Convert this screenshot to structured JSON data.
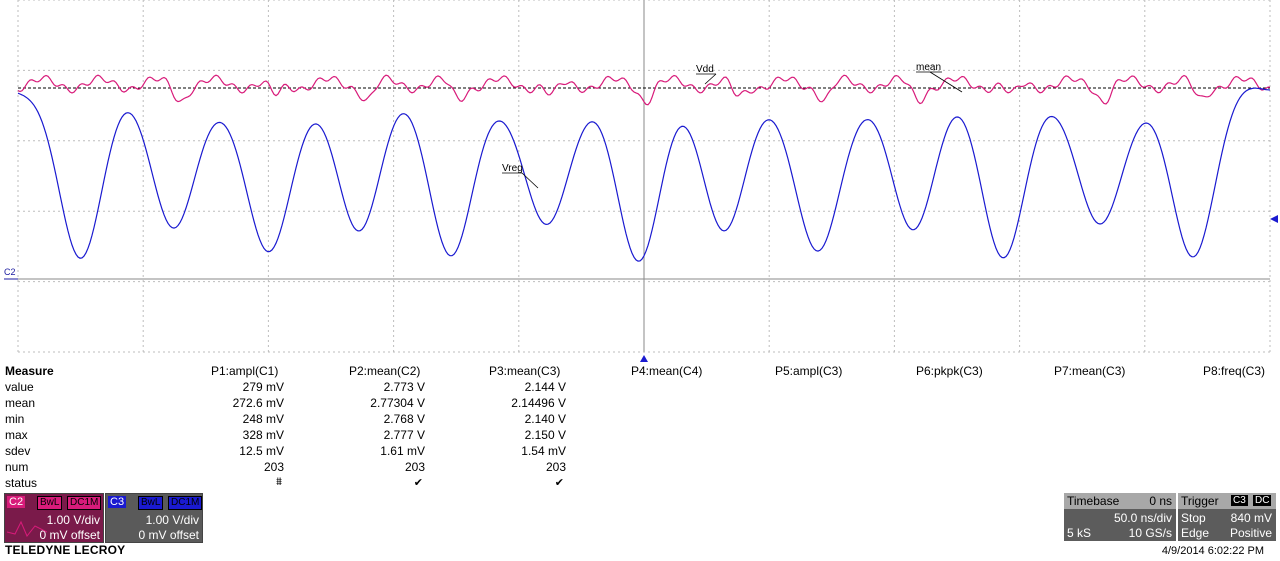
{
  "scope": {
    "annotations": {
      "vdd": "Vdd",
      "vreg": "Vreg",
      "mean": "mean"
    },
    "channel_marker": "C2"
  },
  "measure": {
    "title": "Measure",
    "row_labels": [
      "value",
      "mean",
      "min",
      "max",
      "sdev",
      "num",
      "status"
    ],
    "params": [
      {
        "header": "P1:ampl(C1)",
        "value": "279 mV",
        "mean": "272.6 mV",
        "min": "248 mV",
        "max": "328 mV",
        "sdev": "12.5 mV",
        "num": "203",
        "status": "⩩"
      },
      {
        "header": "P2:mean(C2)",
        "value": "2.773 V",
        "mean": "2.77304 V",
        "min": "2.768 V",
        "max": "2.777 V",
        "sdev": "1.61 mV",
        "num": "203",
        "status": "✔"
      },
      {
        "header": "P3:mean(C3)",
        "value": "2.144 V",
        "mean": "2.14496 V",
        "min": "2.140 V",
        "max": "2.150 V",
        "sdev": "1.54 mV",
        "num": "203",
        "status": "✔"
      },
      {
        "header": "P4:mean(C4)"
      },
      {
        "header": "P5:ampl(C3)"
      },
      {
        "header": "P6:pkpk(C3)"
      },
      {
        "header": "P7:mean(C3)"
      },
      {
        "header": "P8:freq(C3)"
      }
    ]
  },
  "channels": [
    {
      "id": "C2",
      "bw": "BwL",
      "coupling": "DC1M",
      "vdiv": "1.00 V/div",
      "offset": "0 mV offset",
      "color": "#d81b7a"
    },
    {
      "id": "C3",
      "bw": "BwL",
      "coupling": "DC1M",
      "vdiv": "1.00 V/div",
      "offset": "0 mV offset",
      "color": "#1a1ad0"
    }
  ],
  "timebase": {
    "label": "Timebase",
    "delay": "0 ns",
    "tdiv": "50.0 ns/div",
    "samples": "5 kS",
    "rate": "10 GS/s"
  },
  "trigger": {
    "label": "Trigger",
    "channel": "C3",
    "coupling": "DC",
    "mode": "Stop",
    "level": "840 mV",
    "type": "Edge",
    "slope": "Positive"
  },
  "brand": "TELEDYNE LECROY",
  "datetime": "4/9/2014 6:02:22 PM",
  "colors": {
    "c2": "#d81b7a",
    "c3": "#1a1ad0",
    "panel": "#5c5c5c"
  }
}
